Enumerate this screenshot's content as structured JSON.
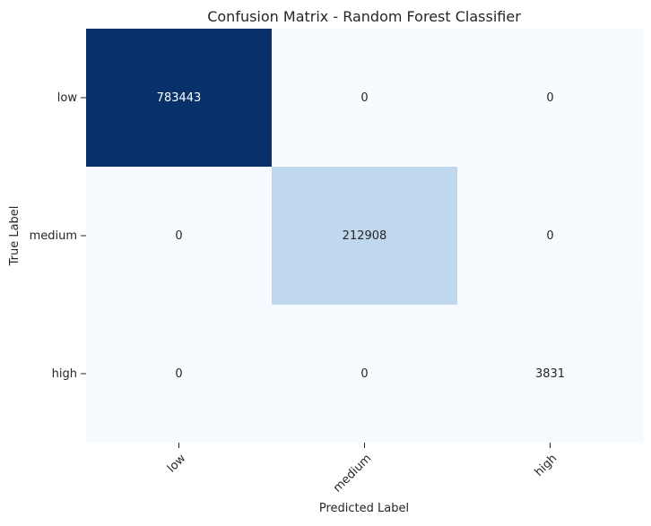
{
  "chart_data": {
    "type": "heatmap",
    "title": "Confusion Matrix - Random Forest Classifier",
    "xlabel": "Predicted Label",
    "ylabel": "True Label",
    "x_categories": [
      "low",
      "medium",
      "high"
    ],
    "y_categories": [
      "low",
      "medium",
      "high"
    ],
    "values": [
      [
        783443,
        0,
        0
      ],
      [
        0,
        212908,
        0
      ],
      [
        0,
        0,
        3831
      ]
    ],
    "colormap": "Blues",
    "color_range": [
      0,
      783443
    ],
    "colorbar": false,
    "annotations": true
  }
}
